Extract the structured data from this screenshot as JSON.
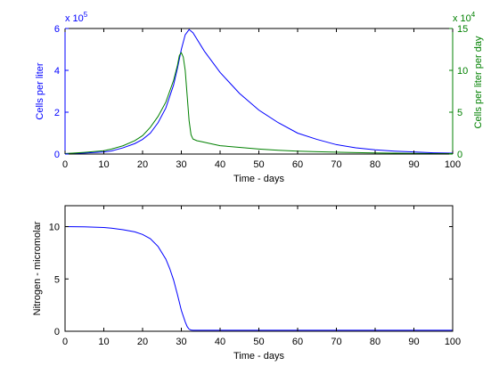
{
  "chart_data": [
    {
      "type": "line",
      "xlabel": "Time - days",
      "xlim": [
        0,
        100
      ],
      "xticks": [
        0,
        10,
        20,
        30,
        40,
        50,
        60,
        70,
        80,
        90,
        100
      ],
      "grid": false,
      "left_axis": {
        "label": "Cells per liter",
        "color": "#0000ff",
        "ylim": [
          0,
          6
        ],
        "ticks": [
          0,
          2,
          4,
          6
        ],
        "scale_text": {
          "base": "x 10",
          "exponent": "5"
        }
      },
      "right_axis": {
        "label": "Cells per liter per day",
        "color": "#008000",
        "ylim": [
          0,
          15
        ],
        "ticks": [
          0,
          5,
          10,
          15
        ],
        "scale_text": {
          "base": "x 10",
          "exponent": "4"
        }
      },
      "series": [
        {
          "axis": "left",
          "color": "#0000ff",
          "x": [
            0,
            5,
            10,
            12,
            15,
            18,
            20,
            22,
            24,
            26,
            28,
            29,
            30,
            31,
            32,
            33,
            34,
            35,
            36,
            38,
            40,
            42,
            45,
            50,
            55,
            60,
            65,
            70,
            75,
            80,
            85,
            90,
            95,
            100
          ],
          "y": [
            0.02,
            0.05,
            0.1,
            0.15,
            0.3,
            0.5,
            0.7,
            1.0,
            1.5,
            2.2,
            3.3,
            4.1,
            5.0,
            5.7,
            5.95,
            5.8,
            5.5,
            5.2,
            4.9,
            4.4,
            3.9,
            3.5,
            2.9,
            2.1,
            1.5,
            1.0,
            0.7,
            0.45,
            0.3,
            0.2,
            0.14,
            0.1,
            0.06,
            0.04
          ]
        },
        {
          "axis": "right",
          "color": "#008000",
          "x": [
            0,
            5,
            10,
            12,
            15,
            18,
            20,
            22,
            24,
            26,
            28,
            29,
            29.5,
            30,
            30.5,
            31,
            31.5,
            32,
            32.5,
            33,
            34,
            35,
            38,
            40,
            45,
            50,
            55,
            60,
            65,
            70,
            75,
            80,
            85,
            90,
            95,
            100
          ],
          "y": [
            0.05,
            0.2,
            0.4,
            0.6,
            1.0,
            1.6,
            2.2,
            3.2,
            4.5,
            6.2,
            8.8,
            10.6,
            11.8,
            12.1,
            11.6,
            10.0,
            7.0,
            4.0,
            2.3,
            1.8,
            1.6,
            1.5,
            1.2,
            1.0,
            0.8,
            0.6,
            0.45,
            0.35,
            0.28,
            0.22,
            0.17,
            0.13,
            0.1,
            0.08,
            0.06,
            0.05
          ]
        }
      ]
    },
    {
      "type": "line",
      "xlabel": "Time - days",
      "ylabel": "Nitrogen - micromolar",
      "xlim": [
        0,
        100
      ],
      "ylim": [
        0,
        12
      ],
      "xticks": [
        0,
        10,
        20,
        30,
        40,
        50,
        60,
        70,
        80,
        90,
        100
      ],
      "yticks": [
        0,
        5,
        10
      ],
      "grid": false,
      "series": [
        {
          "color": "#0000ff",
          "x": [
            0,
            5,
            10,
            12,
            15,
            18,
            20,
            22,
            24,
            26,
            27,
            28,
            29,
            30,
            31,
            31.5,
            32,
            32.5,
            33,
            35,
            40,
            50,
            60,
            70,
            80,
            90,
            100
          ],
          "y": [
            10.0,
            9.98,
            9.92,
            9.85,
            9.7,
            9.5,
            9.25,
            8.85,
            8.1,
            6.9,
            6.0,
            4.9,
            3.5,
            2.0,
            0.9,
            0.45,
            0.2,
            0.12,
            0.1,
            0.1,
            0.1,
            0.1,
            0.1,
            0.1,
            0.1,
            0.1,
            0.1
          ]
        }
      ]
    }
  ]
}
